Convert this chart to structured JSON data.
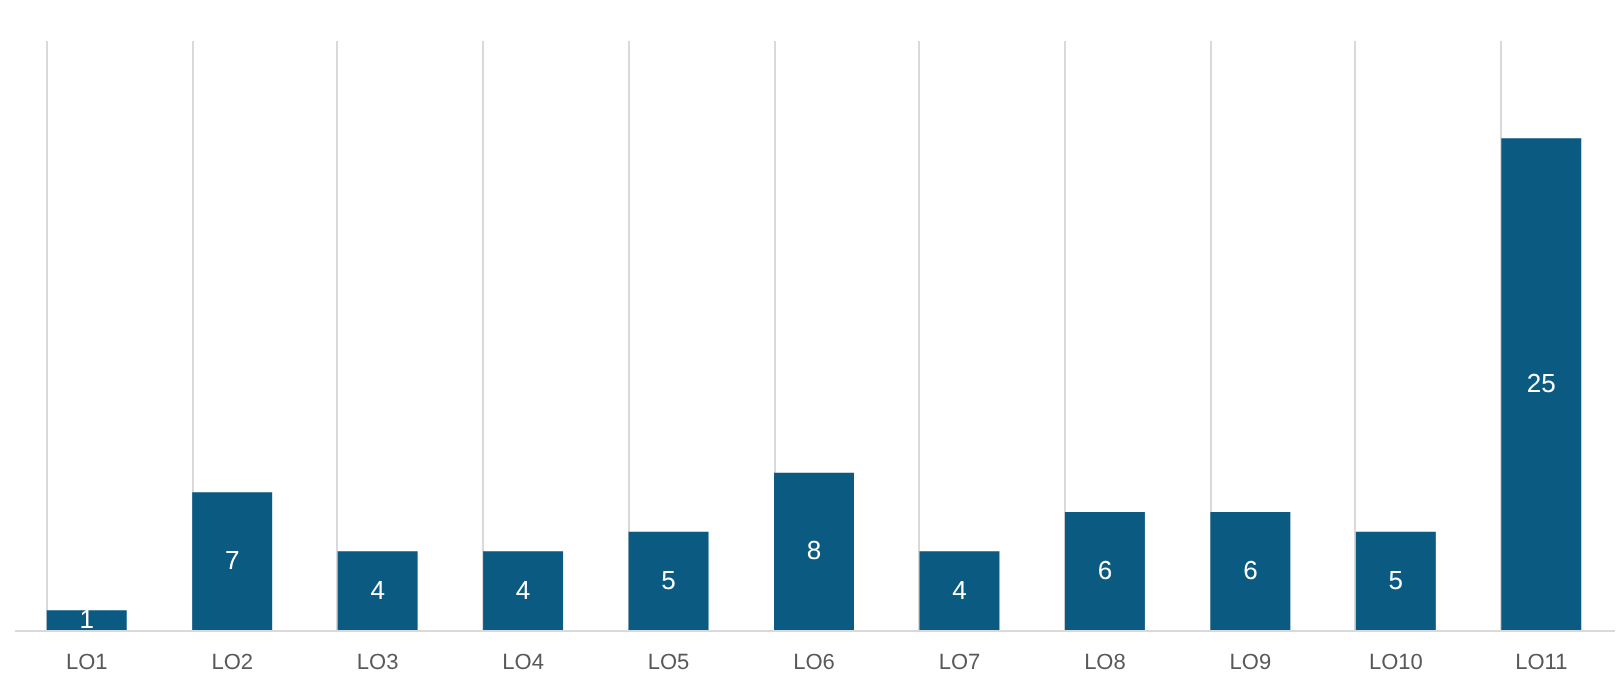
{
  "chart_data": {
    "type": "bar",
    "categories": [
      "LO1",
      "LO2",
      "LO3",
      "LO4",
      "LO5",
      "LO6",
      "LO7",
      "LO8",
      "LO9",
      "LO10",
      "LO11"
    ],
    "values": [
      1,
      7,
      4,
      4,
      5,
      8,
      4,
      6,
      6,
      5,
      25
    ],
    "color": "#0b5a82",
    "ylim": [
      0,
      30
    ],
    "data_labels": true,
    "grid": "x"
  }
}
